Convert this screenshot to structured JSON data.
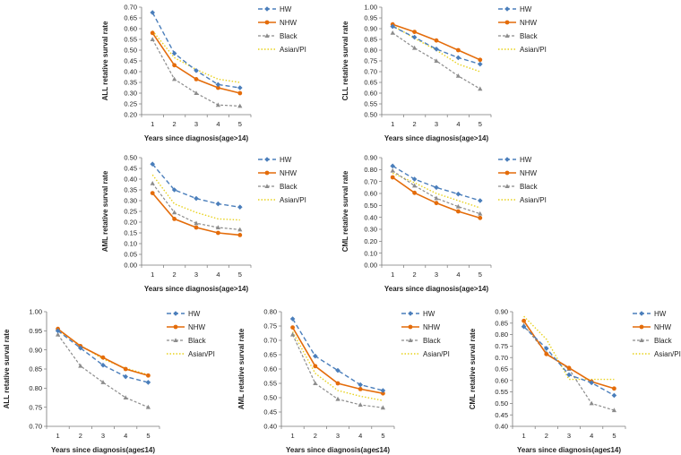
{
  "series_styles": [
    {
      "name": "HW",
      "color": "#4a7ebb",
      "dash": "5,3",
      "marker": "diamond",
      "width": 1.4
    },
    {
      "name": "NHW",
      "color": "#e46c0a",
      "dash": "",
      "marker": "circle",
      "width": 1.6
    },
    {
      "name": "Black",
      "color": "#8c8c8c",
      "dash": "3,2",
      "marker": "triangle",
      "width": 1.2
    },
    {
      "name": "Asian/PI",
      "color": "#e8d21d",
      "dash": "1.5,2",
      "marker": "none",
      "width": 1.4
    }
  ],
  "chart_data": [
    {
      "type": "line",
      "ylabel": "ALL retative surval rate",
      "xlabel": "Years since diagnosis(age>14)",
      "categories": [
        "1",
        "2",
        "3",
        "4",
        "5"
      ],
      "ylim": [
        0.2,
        0.7
      ],
      "yticks": [
        "0.20",
        "0.25",
        "0.30",
        "0.35",
        "0.40",
        "0.45",
        "0.50",
        "0.55",
        "0.60",
        "0.65",
        "0.70"
      ],
      "legend": [
        "HW",
        "NHW",
        "Black",
        "Asian/PI"
      ],
      "series": [
        {
          "name": "HW",
          "values": [
            0.675,
            0.485,
            0.405,
            0.34,
            0.325
          ]
        },
        {
          "name": "NHW",
          "values": [
            0.58,
            0.43,
            0.365,
            0.325,
            0.3
          ]
        },
        {
          "name": "Black",
          "values": [
            0.55,
            0.365,
            0.3,
            0.245,
            0.24
          ]
        },
        {
          "name": "Asian/PI",
          "values": [
            0.59,
            0.465,
            0.41,
            0.365,
            0.35
          ]
        }
      ]
    },
    {
      "type": "line",
      "ylabel": "CLL retative surval rate",
      "xlabel": "Years since diagnosis(age>14)",
      "categories": [
        "1",
        "2",
        "3",
        "4",
        "5"
      ],
      "ylim": [
        0.5,
        1.0
      ],
      "yticks": [
        "0.50",
        "0.55",
        "0.60",
        "0.65",
        "0.70",
        "0.75",
        "0.80",
        "0.85",
        "0.90",
        "0.95",
        "1.00"
      ],
      "legend": [
        "HW",
        "NHW",
        "Black",
        "Asian/PI"
      ],
      "series": [
        {
          "name": "HW",
          "values": [
            0.91,
            0.86,
            0.805,
            0.765,
            0.735
          ]
        },
        {
          "name": "NHW",
          "values": [
            0.92,
            0.885,
            0.845,
            0.8,
            0.755
          ]
        },
        {
          "name": "Black",
          "values": [
            0.88,
            0.81,
            0.75,
            0.68,
            0.62
          ]
        },
        {
          "name": "Asian/PI",
          "values": [
            0.915,
            0.855,
            0.8,
            0.735,
            0.7
          ]
        }
      ]
    },
    {
      "type": "line",
      "ylabel": "AML retative surval rate",
      "xlabel": "Years since diagnosis(age>14)",
      "categories": [
        "1",
        "2",
        "3",
        "4",
        "5"
      ],
      "ylim": [
        0.0,
        0.5
      ],
      "yticks": [
        "0.00",
        "0.05",
        "0.10",
        "0.15",
        "0.20",
        "0.25",
        "0.30",
        "0.35",
        "0.40",
        "0.45",
        "0.50"
      ],
      "legend": [
        "HW",
        "NHW",
        "Black",
        "Asian/PI"
      ],
      "series": [
        {
          "name": "HW",
          "values": [
            0.47,
            0.35,
            0.31,
            0.285,
            0.27
          ]
        },
        {
          "name": "NHW",
          "values": [
            0.335,
            0.215,
            0.175,
            0.15,
            0.14
          ]
        },
        {
          "name": "Black",
          "values": [
            0.38,
            0.245,
            0.195,
            0.175,
            0.165
          ]
        },
        {
          "name": "Asian/PI",
          "values": [
            0.42,
            0.285,
            0.245,
            0.215,
            0.21
          ]
        }
      ]
    },
    {
      "type": "line",
      "ylabel": "CML retative surval rate",
      "xlabel": "Years since diagnosis(age>14)",
      "categories": [
        "1",
        "2",
        "3",
        "4",
        "5"
      ],
      "ylim": [
        0.0,
        0.9
      ],
      "yticks": [
        "0.00",
        "0.10",
        "0.20",
        "0.30",
        "0.40",
        "0.50",
        "0.60",
        "0.70",
        "0.80",
        "0.90"
      ],
      "legend": [
        "HW",
        "NHW",
        "Black",
        "Asian/PI"
      ],
      "series": [
        {
          "name": "HW",
          "values": [
            0.83,
            0.72,
            0.65,
            0.595,
            0.54
          ]
        },
        {
          "name": "NHW",
          "values": [
            0.735,
            0.605,
            0.52,
            0.45,
            0.395
          ]
        },
        {
          "name": "Black",
          "values": [
            0.79,
            0.665,
            0.56,
            0.49,
            0.43
          ]
        },
        {
          "name": "Asian/PI",
          "values": [
            0.77,
            0.69,
            0.6,
            0.54,
            0.48
          ]
        }
      ]
    },
    {
      "type": "line",
      "ylabel": "ALL retative surval rate",
      "xlabel": "Years since diagnosis(age≤14)",
      "categories": [
        "1",
        "2",
        "3",
        "4",
        "5"
      ],
      "ylim": [
        0.7,
        1.0
      ],
      "yticks": [
        "0.70",
        "0.75",
        "0.80",
        "0.85",
        "0.90",
        "0.95",
        "1.00"
      ],
      "legend": [
        "HW",
        "NHW",
        "Black",
        "Asian/PI"
      ],
      "series": [
        {
          "name": "HW",
          "values": [
            0.95,
            0.905,
            0.86,
            0.83,
            0.815
          ]
        },
        {
          "name": "NHW",
          "values": [
            0.955,
            0.91,
            0.88,
            0.85,
            0.833
          ]
        },
        {
          "name": "Black",
          "values": [
            0.94,
            0.858,
            0.815,
            0.775,
            0.75
          ]
        },
        {
          "name": "Asian/PI",
          "values": [
            0.952,
            0.912,
            0.876,
            0.852,
            0.835
          ]
        }
      ]
    },
    {
      "type": "line",
      "ylabel": "AML retative surval rate",
      "xlabel": "Years since diagnosis(age≤14)",
      "categories": [
        "1",
        "2",
        "3",
        "4",
        "5"
      ],
      "ylim": [
        0.4,
        0.8
      ],
      "yticks": [
        "0.40",
        "0.45",
        "0.50",
        "0.55",
        "0.60",
        "0.65",
        "0.70",
        "0.75",
        "0.80"
      ],
      "legend": [
        "HW",
        "NHW",
        "Black",
        "Asian/PI"
      ],
      "series": [
        {
          "name": "HW",
          "values": [
            0.775,
            0.645,
            0.595,
            0.545,
            0.525
          ]
        },
        {
          "name": "NHW",
          "values": [
            0.745,
            0.61,
            0.55,
            0.53,
            0.515
          ]
        },
        {
          "name": "Black",
          "values": [
            0.72,
            0.55,
            0.495,
            0.475,
            0.465
          ]
        },
        {
          "name": "Asian/PI",
          "values": [
            0.73,
            0.585,
            0.525,
            0.505,
            0.49
          ]
        }
      ]
    },
    {
      "type": "line",
      "ylabel": "CML retative surval rate",
      "xlabel": "Years since diagnosis(age≤14)",
      "categories": [
        "1",
        "2",
        "3",
        "4",
        "5"
      ],
      "ylim": [
        0.4,
        0.9
      ],
      "yticks": [
        "0.40",
        "0.45",
        "0.50",
        "0.55",
        "0.60",
        "0.65",
        "0.70",
        "0.75",
        "0.80",
        "0.85",
        "0.90"
      ],
      "legend": [
        "HW",
        "NHW",
        "Black",
        "Asian/PI"
      ],
      "series": [
        {
          "name": "HW",
          "values": [
            0.835,
            0.74,
            0.625,
            0.59,
            0.535
          ]
        },
        {
          "name": "NHW",
          "values": [
            0.86,
            0.715,
            0.655,
            0.595,
            0.565
          ]
        },
        {
          "name": "Black",
          "values": [
            0.84,
            0.72,
            0.65,
            0.5,
            0.47
          ]
        },
        {
          "name": "Asian/PI",
          "values": [
            0.88,
            0.78,
            0.605,
            0.605,
            0.605
          ]
        }
      ]
    }
  ]
}
